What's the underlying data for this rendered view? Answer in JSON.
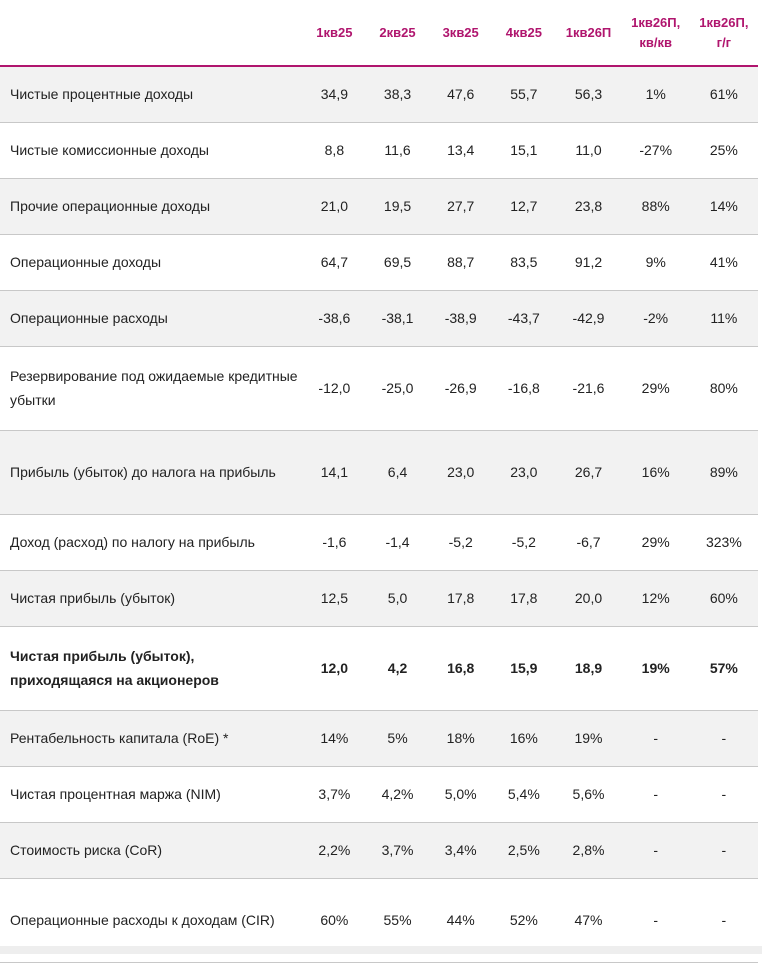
{
  "table": {
    "headers": [
      "",
      "1кв25",
      "2кв25",
      "3кв25",
      "4кв25",
      "1кв26П",
      [
        "1кв26П,",
        "кв/кв"
      ],
      [
        "1кв26П,",
        "г/г"
      ]
    ],
    "rows": [
      {
        "label": "Чистые процентные доходы",
        "values": [
          "34,9",
          "38,3",
          "47,6",
          "55,7",
          "56,3",
          "1%",
          "61%"
        ],
        "bold": false
      },
      {
        "label": "Чистые комиссионные доходы",
        "values": [
          "8,8",
          "11,6",
          "13,4",
          "15,1",
          "11,0",
          "-27%",
          "25%"
        ],
        "bold": false
      },
      {
        "label": "Прочие операционные доходы",
        "values": [
          "21,0",
          "19,5",
          "27,7",
          "12,7",
          "23,8",
          "88%",
          "14%"
        ],
        "bold": false
      },
      {
        "label": "Операционные доходы",
        "values": [
          "64,7",
          "69,5",
          "88,7",
          "83,5",
          "91,2",
          "9%",
          "41%"
        ],
        "bold": false
      },
      {
        "label": "Операционные расходы",
        "values": [
          "-38,6",
          "-38,1",
          "-38,9",
          "-43,7",
          "-42,9",
          "-2%",
          "11%"
        ],
        "bold": false
      },
      {
        "label": "Резервирование под ожидаемые кредитные убытки",
        "values": [
          "-12,0",
          "-25,0",
          "-26,9",
          "-16,8",
          "-21,6",
          "29%",
          "80%"
        ],
        "bold": false
      },
      {
        "label": "Прибыль (убыток) до налога на прибыль",
        "values": [
          "14,1",
          "6,4",
          "23,0",
          "23,0",
          "26,7",
          "16%",
          "89%"
        ],
        "bold": false
      },
      {
        "label": "Доход (расход) по налогу на прибыль",
        "values": [
          "-1,6",
          "-1,4",
          "-5,2",
          "-5,2",
          "-6,7",
          "29%",
          "323%"
        ],
        "bold": false
      },
      {
        "label": "Чистая прибыль (убыток)",
        "values": [
          "12,5",
          "5,0",
          "17,8",
          "17,8",
          "20,0",
          "12%",
          "60%"
        ],
        "bold": false
      },
      {
        "label": "Чистая прибыль (убыток), приходящаяся на акционеров",
        "values": [
          "12,0",
          "4,2",
          "16,8",
          "15,9",
          "18,9",
          "19%",
          "57%"
        ],
        "bold": true
      },
      {
        "label": "Рентабельность капитала (RoE) *",
        "values": [
          "14%",
          "5%",
          "18%",
          "16%",
          "19%",
          "-",
          "-"
        ],
        "bold": false
      },
      {
        "label": "Чистая процентная маржа (NIM)",
        "values": [
          "3,7%",
          "4,2%",
          "5,0%",
          "5,4%",
          "5,6%",
          "-",
          "-"
        ],
        "bold": false
      },
      {
        "label": "Стоимость риска (CoR)",
        "values": [
          "2,2%",
          "3,7%",
          "3,4%",
          "2,5%",
          "2,8%",
          "-",
          "-"
        ],
        "bold": false
      },
      {
        "label": "Операционные расходы к доходам (CIR)",
        "values": [
          "60%",
          "55%",
          "44%",
          "52%",
          "47%",
          "-",
          "-"
        ],
        "bold": false
      }
    ]
  },
  "colors": {
    "header_text": "#b0156e",
    "header_rule": "#b0156e",
    "stripe": "#f2f2f2",
    "row_rule": "#c8c8c8"
  }
}
